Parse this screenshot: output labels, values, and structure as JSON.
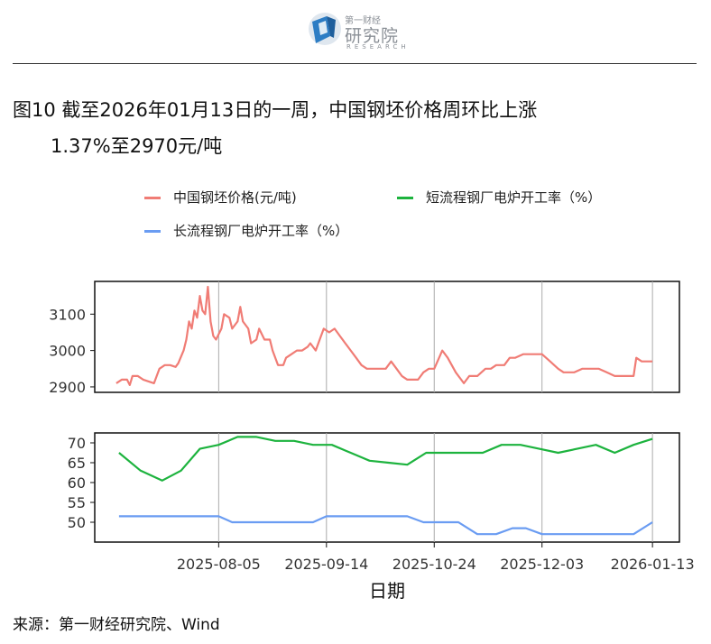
{
  "header": {
    "logo_small": "第一财经",
    "logo_big": "研究院",
    "logo_en": "RESEARCH"
  },
  "title": {
    "line1": "图10  截至2026年01月13日的一周，中国钢坯价格周环比上涨",
    "line2": "1.37%至2970元/吨"
  },
  "source": "来源：第一财经研究院、Wind",
  "chart_data": {
    "type": "line",
    "xlabel": "日期",
    "x_ticks": [
      "2025-08-05",
      "2025-09-14",
      "2025-10-24",
      "2025-12-03",
      "2026-01-13"
    ],
    "legend": [
      {
        "name": "中国钢坯价格(元/吨)",
        "color": "#F07C75"
      },
      {
        "name": "短流程钢厂电炉开工率（%）",
        "color": "#1DB33E"
      },
      {
        "name": "长流程钢厂电炉开工率（%）",
        "color": "#6A9CF2"
      }
    ],
    "panels": [
      {
        "ylim": [
          2885,
          3190
        ],
        "y_ticks": [
          2900,
          3000,
          3100
        ],
        "series": [
          {
            "name": "中国钢坯价格(元/吨)",
            "color": "#F07C75",
            "points": [
              [
                "2025-06-28",
                2910
              ],
              [
                "2025-06-30",
                2920
              ],
              [
                "2025-07-02",
                2920
              ],
              [
                "2025-07-03",
                2905
              ],
              [
                "2025-07-04",
                2930
              ],
              [
                "2025-07-06",
                2930
              ],
              [
                "2025-07-08",
                2920
              ],
              [
                "2025-07-10",
                2915
              ],
              [
                "2025-07-12",
                2910
              ],
              [
                "2025-07-14",
                2950
              ],
              [
                "2025-07-16",
                2960
              ],
              [
                "2025-07-18",
                2960
              ],
              [
                "2025-07-20",
                2955
              ],
              [
                "2025-07-21",
                2965
              ],
              [
                "2025-07-23",
                3000
              ],
              [
                "2025-07-24",
                3030
              ],
              [
                "2025-07-25",
                3080
              ],
              [
                "2025-07-26",
                3060
              ],
              [
                "2025-07-27",
                3110
              ],
              [
                "2025-07-28",
                3090
              ],
              [
                "2025-07-29",
                3150
              ],
              [
                "2025-07-30",
                3110
              ],
              [
                "2025-07-31",
                3100
              ],
              [
                "2025-08-01",
                3175
              ],
              [
                "2025-08-02",
                3080
              ],
              [
                "2025-08-03",
                3040
              ],
              [
                "2025-08-04",
                3030
              ],
              [
                "2025-08-06",
                3060
              ],
              [
                "2025-08-07",
                3100
              ],
              [
                "2025-08-09",
                3090
              ],
              [
                "2025-08-10",
                3060
              ],
              [
                "2025-08-12",
                3080
              ],
              [
                "2025-08-13",
                3120
              ],
              [
                "2025-08-14",
                3080
              ],
              [
                "2025-08-16",
                3060
              ],
              [
                "2025-08-17",
                3020
              ],
              [
                "2025-08-19",
                3030
              ],
              [
                "2025-08-20",
                3060
              ],
              [
                "2025-08-22",
                3030
              ],
              [
                "2025-08-24",
                3030
              ],
              [
                "2025-08-25",
                3000
              ],
              [
                "2025-08-27",
                2960
              ],
              [
                "2025-08-29",
                2960
              ],
              [
                "2025-08-30",
                2980
              ],
              [
                "2025-09-01",
                2990
              ],
              [
                "2025-09-03",
                3000
              ],
              [
                "2025-09-05",
                3000
              ],
              [
                "2025-09-07",
                3010
              ],
              [
                "2025-09-08",
                3020
              ],
              [
                "2025-09-10",
                3000
              ],
              [
                "2025-09-12",
                3040
              ],
              [
                "2025-09-13",
                3060
              ],
              [
                "2025-09-15",
                3050
              ],
              [
                "2025-09-17",
                3060
              ],
              [
                "2025-09-19",
                3040
              ],
              [
                "2025-09-21",
                3020
              ],
              [
                "2025-09-23",
                3000
              ],
              [
                "2025-09-25",
                2980
              ],
              [
                "2025-09-27",
                2960
              ],
              [
                "2025-09-29",
                2950
              ],
              [
                "2025-10-03",
                2950
              ],
              [
                "2025-10-06",
                2950
              ],
              [
                "2025-10-08",
                2970
              ],
              [
                "2025-10-10",
                2950
              ],
              [
                "2025-10-12",
                2930
              ],
              [
                "2025-10-14",
                2920
              ],
              [
                "2025-10-18",
                2920
              ],
              [
                "2025-10-20",
                2940
              ],
              [
                "2025-10-22",
                2950
              ],
              [
                "2025-10-24",
                2950
              ],
              [
                "2025-10-27",
                3000
              ],
              [
                "2025-10-29",
                2980
              ],
              [
                "2025-11-01",
                2940
              ],
              [
                "2025-11-04",
                2910
              ],
              [
                "2025-11-06",
                2930
              ],
              [
                "2025-11-09",
                2930
              ],
              [
                "2025-11-12",
                2950
              ],
              [
                "2025-11-14",
                2950
              ],
              [
                "2025-11-16",
                2960
              ],
              [
                "2025-11-19",
                2960
              ],
              [
                "2025-11-21",
                2980
              ],
              [
                "2025-11-23",
                2980
              ],
              [
                "2025-11-26",
                2990
              ],
              [
                "2025-11-29",
                2990
              ],
              [
                "2025-12-03",
                2990
              ],
              [
                "2025-12-06",
                2970
              ],
              [
                "2025-12-09",
                2950
              ],
              [
                "2025-12-11",
                2940
              ],
              [
                "2025-12-15",
                2940
              ],
              [
                "2025-12-18",
                2950
              ],
              [
                "2025-12-24",
                2950
              ],
              [
                "2025-12-27",
                2940
              ],
              [
                "2025-12-30",
                2930
              ],
              [
                "2026-01-06",
                2930
              ],
              [
                "2026-01-07",
                2980
              ],
              [
                "2026-01-09",
                2970
              ],
              [
                "2026-01-13",
                2970
              ]
            ]
          }
        ]
      },
      {
        "ylim": [
          45,
          72.5
        ],
        "y_ticks": [
          50,
          55,
          60,
          65,
          70
        ],
        "series": [
          {
            "name": "短流程钢厂电炉开工率（%）",
            "color": "#1DB33E",
            "points": [
              [
                "2025-06-29",
                67.5
              ],
              [
                "2025-07-07",
                63.0
              ],
              [
                "2025-07-15",
                60.5
              ],
              [
                "2025-07-22",
                63.0
              ],
              [
                "2025-07-29",
                68.5
              ],
              [
                "2025-08-05",
                69.5
              ],
              [
                "2025-08-12",
                71.5
              ],
              [
                "2025-08-19",
                71.5
              ],
              [
                "2025-08-26",
                70.5
              ],
              [
                "2025-09-02",
                70.5
              ],
              [
                "2025-09-09",
                69.5
              ],
              [
                "2025-09-16",
                69.5
              ],
              [
                "2025-09-23",
                67.5
              ],
              [
                "2025-09-30",
                65.5
              ],
              [
                "2025-10-07",
                65.0
              ],
              [
                "2025-10-14",
                64.5
              ],
              [
                "2025-10-21",
                67.5
              ],
              [
                "2025-10-28",
                67.5
              ],
              [
                "2025-11-04",
                67.5
              ],
              [
                "2025-11-11",
                67.5
              ],
              [
                "2025-11-18",
                69.5
              ],
              [
                "2025-11-25",
                69.5
              ],
              [
                "2025-12-02",
                68.5
              ],
              [
                "2025-12-09",
                67.5
              ],
              [
                "2025-12-16",
                68.5
              ],
              [
                "2025-12-23",
                69.5
              ],
              [
                "2025-12-30",
                67.5
              ],
              [
                "2026-01-06",
                69.5
              ],
              [
                "2026-01-13",
                71.0
              ]
            ]
          },
          {
            "name": "长流程钢厂电炉开工率（%）",
            "color": "#6A9CF2",
            "points": [
              [
                "2025-06-29",
                51.5
              ],
              [
                "2025-07-29",
                51.5
              ],
              [
                "2025-08-05",
                51.5
              ],
              [
                "2025-08-10",
                50.0
              ],
              [
                "2025-08-17",
                50.0
              ],
              [
                "2025-09-02",
                50.0
              ],
              [
                "2025-09-09",
                50.0
              ],
              [
                "2025-09-14",
                51.5
              ],
              [
                "2025-09-22",
                51.5
              ],
              [
                "2025-10-07",
                51.5
              ],
              [
                "2025-10-14",
                51.5
              ],
              [
                "2025-10-20",
                50.0
              ],
              [
                "2025-11-02",
                50.0
              ],
              [
                "2025-11-09",
                47.0
              ],
              [
                "2025-11-16",
                47.0
              ],
              [
                "2025-11-22",
                48.5
              ],
              [
                "2025-11-27",
                48.5
              ],
              [
                "2025-12-03",
                47.0
              ],
              [
                "2025-12-16",
                47.0
              ],
              [
                "2026-01-06",
                47.0
              ],
              [
                "2026-01-13",
                50.0
              ]
            ]
          }
        ]
      }
    ]
  }
}
